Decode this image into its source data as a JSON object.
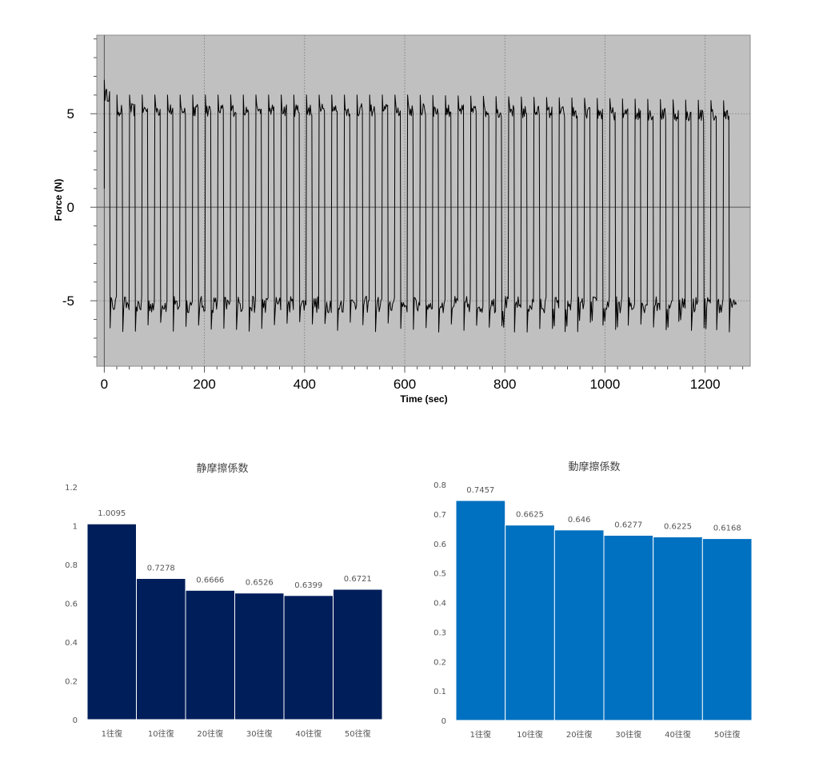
{
  "chart_data": [
    {
      "type": "line",
      "title": "",
      "xlabel": "Time (sec)",
      "ylabel": "Force (N)",
      "xlim": [
        -15,
        1290
      ],
      "ylim": [
        -8.5,
        9.2
      ],
      "x_ticks": [
        0,
        200,
        400,
        600,
        800,
        1000,
        1200
      ],
      "y_ticks": [
        5,
        0,
        -5
      ],
      "grid": true,
      "series": [
        {
          "name": "Force",
          "description": "square-wave friction force, about 50 round-trip cycles",
          "cycles": 50,
          "cycle_period_sec": 25,
          "start_sec": 0,
          "end_sec": 1262,
          "positive_level_start": 6.0,
          "positive_level_mid": 5.2,
          "positive_level_end": 4.9,
          "negative_level": -5.2,
          "negative_spike_min": -6.5
        }
      ]
    },
    {
      "type": "bar",
      "title": "静摩擦係数",
      "categories": [
        "1往復",
        "10往復",
        "20往復",
        "30往復",
        "40往復",
        "50往復"
      ],
      "values": [
        1.0095,
        0.7278,
        0.6666,
        0.6526,
        0.6399,
        0.6721
      ],
      "value_labels": [
        "1.0095",
        "0.7278",
        "0.6666",
        "0.6526",
        "0.6399",
        "0.6721"
      ],
      "ylim": [
        0,
        1.2
      ],
      "y_ticks": [
        0,
        0.2,
        0.4,
        0.6,
        0.8,
        1,
        1.2
      ],
      "y_tick_labels": [
        "0",
        "0.2",
        "0.4",
        "0.6",
        "0.8",
        "1",
        "1.2"
      ],
      "color": "#001e5a"
    },
    {
      "type": "bar",
      "title": "動摩擦係数",
      "categories": [
        "1往復",
        "10往復",
        "20往復",
        "30往復",
        "40往復",
        "50往復"
      ],
      "values": [
        0.7457,
        0.6625,
        0.646,
        0.6277,
        0.6225,
        0.6168
      ],
      "value_labels": [
        "0.7457",
        "0.6625",
        "0.646",
        "0.6277",
        "0.6225",
        "0.6168"
      ],
      "ylim": [
        0,
        0.8
      ],
      "y_ticks": [
        0,
        0.1,
        0.2,
        0.3,
        0.4,
        0.5,
        0.6,
        0.7,
        0.8
      ],
      "y_tick_labels": [
        "0",
        "0.1",
        "0.2",
        "0.3",
        "0.4",
        "0.5",
        "0.6",
        "0.7",
        "0.8"
      ],
      "color": "#0070c0"
    }
  ]
}
